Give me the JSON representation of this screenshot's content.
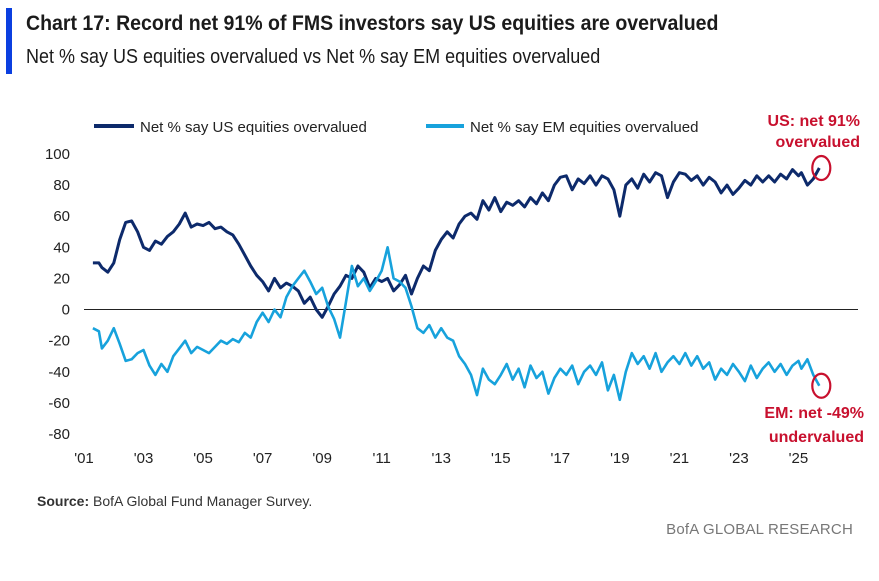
{
  "header": {
    "title": "Chart 17: Record net 91% of FMS investors say US equities are overvalued",
    "subtitle": "Net % say US equities overvalued vs Net % say EM equities overvalued"
  },
  "footer": {
    "source_label": "Source:",
    "source_text": " BofA Global Fund Manager Survey.",
    "brand": "BofA GLOBAL RESEARCH"
  },
  "annotations": {
    "us_line1": "US: net 91%",
    "us_line2": "overvalued",
    "em_line1": "EM: net -49%",
    "em_line2": "undervalued"
  },
  "colors": {
    "us": "#0d2a6b",
    "em": "#17a2dc",
    "annotation": "#c8102e",
    "accent_bar": "#0b3fe0"
  },
  "chart_data": {
    "type": "line",
    "ylim": [
      -80,
      100
    ],
    "yticks": [
      100,
      80,
      60,
      40,
      20,
      0,
      -20,
      -40,
      -60,
      -80
    ],
    "xlim": [
      2001,
      2027
    ],
    "xticks": [
      {
        "value": 2001,
        "label": "'01"
      },
      {
        "value": 2003,
        "label": "'03"
      },
      {
        "value": 2005,
        "label": "'05"
      },
      {
        "value": 2007,
        "label": "'07"
      },
      {
        "value": 2009,
        "label": "'09"
      },
      {
        "value": 2011,
        "label": "'11"
      },
      {
        "value": 2013,
        "label": "'13"
      },
      {
        "value": 2015,
        "label": "'15"
      },
      {
        "value": 2017,
        "label": "'17"
      },
      {
        "value": 2019,
        "label": "'19"
      },
      {
        "value": 2021,
        "label": "'21"
      },
      {
        "value": 2023,
        "label": "'23"
      },
      {
        "value": 2025,
        "label": "'25"
      }
    ],
    "legend_position": "top",
    "series": [
      {
        "name": "Net % say US equities overvalued",
        "color": "#0d2a6b",
        "points": [
          [
            2001.3,
            30
          ],
          [
            2001.5,
            30
          ],
          [
            2001.6,
            27
          ],
          [
            2001.8,
            24
          ],
          [
            2002.0,
            30
          ],
          [
            2002.2,
            45
          ],
          [
            2002.4,
            56
          ],
          [
            2002.6,
            57
          ],
          [
            2002.8,
            50
          ],
          [
            2003.0,
            40
          ],
          [
            2003.2,
            38
          ],
          [
            2003.4,
            44
          ],
          [
            2003.6,
            42
          ],
          [
            2003.8,
            47
          ],
          [
            2004.0,
            50
          ],
          [
            2004.2,
            55
          ],
          [
            2004.4,
            62
          ],
          [
            2004.6,
            53
          ],
          [
            2004.8,
            55
          ],
          [
            2005.0,
            54
          ],
          [
            2005.2,
            56
          ],
          [
            2005.4,
            52
          ],
          [
            2005.6,
            53
          ],
          [
            2005.8,
            50
          ],
          [
            2006.0,
            48
          ],
          [
            2006.2,
            42
          ],
          [
            2006.4,
            35
          ],
          [
            2006.6,
            28
          ],
          [
            2006.8,
            22
          ],
          [
            2007.0,
            18
          ],
          [
            2007.2,
            12
          ],
          [
            2007.4,
            20
          ],
          [
            2007.6,
            14
          ],
          [
            2007.8,
            17
          ],
          [
            2008.0,
            15
          ],
          [
            2008.2,
            12
          ],
          [
            2008.4,
            4
          ],
          [
            2008.6,
            8
          ],
          [
            2008.8,
            0
          ],
          [
            2009.0,
            -5
          ],
          [
            2009.2,
            2
          ],
          [
            2009.4,
            10
          ],
          [
            2009.6,
            15
          ],
          [
            2009.8,
            22
          ],
          [
            2010.0,
            20
          ],
          [
            2010.2,
            28
          ],
          [
            2010.4,
            24
          ],
          [
            2010.6,
            14
          ],
          [
            2010.8,
            20
          ],
          [
            2011.0,
            18
          ],
          [
            2011.2,
            20
          ],
          [
            2011.4,
            12
          ],
          [
            2011.6,
            16
          ],
          [
            2011.8,
            22
          ],
          [
            2012.0,
            10
          ],
          [
            2012.2,
            20
          ],
          [
            2012.4,
            28
          ],
          [
            2012.6,
            25
          ],
          [
            2012.8,
            38
          ],
          [
            2013.0,
            45
          ],
          [
            2013.2,
            50
          ],
          [
            2013.4,
            46
          ],
          [
            2013.6,
            55
          ],
          [
            2013.8,
            60
          ],
          [
            2014.0,
            62
          ],
          [
            2014.2,
            58
          ],
          [
            2014.4,
            70
          ],
          [
            2014.6,
            64
          ],
          [
            2014.8,
            72
          ],
          [
            2015.0,
            63
          ],
          [
            2015.2,
            69
          ],
          [
            2015.4,
            67
          ],
          [
            2015.6,
            70
          ],
          [
            2015.8,
            66
          ],
          [
            2016.0,
            72
          ],
          [
            2016.2,
            68
          ],
          [
            2016.4,
            75
          ],
          [
            2016.6,
            70
          ],
          [
            2016.8,
            80
          ],
          [
            2017.0,
            85
          ],
          [
            2017.2,
            86
          ],
          [
            2017.4,
            77
          ],
          [
            2017.6,
            84
          ],
          [
            2017.8,
            81
          ],
          [
            2018.0,
            86
          ],
          [
            2018.2,
            80
          ],
          [
            2018.4,
            86
          ],
          [
            2018.6,
            84
          ],
          [
            2018.8,
            77
          ],
          [
            2019.0,
            60
          ],
          [
            2019.2,
            80
          ],
          [
            2019.4,
            84
          ],
          [
            2019.6,
            78
          ],
          [
            2019.8,
            87
          ],
          [
            2020.0,
            82
          ],
          [
            2020.2,
            88
          ],
          [
            2020.4,
            86
          ],
          [
            2020.6,
            72
          ],
          [
            2020.8,
            82
          ],
          [
            2021.0,
            88
          ],
          [
            2021.2,
            87
          ],
          [
            2021.4,
            83
          ],
          [
            2021.6,
            86
          ],
          [
            2021.8,
            80
          ],
          [
            2022.0,
            85
          ],
          [
            2022.2,
            82
          ],
          [
            2022.4,
            75
          ],
          [
            2022.6,
            80
          ],
          [
            2022.8,
            74
          ],
          [
            2023.0,
            78
          ],
          [
            2023.2,
            83
          ],
          [
            2023.4,
            80
          ],
          [
            2023.6,
            86
          ],
          [
            2023.8,
            82
          ],
          [
            2024.0,
            86
          ],
          [
            2024.2,
            82
          ],
          [
            2024.4,
            87
          ],
          [
            2024.6,
            84
          ],
          [
            2024.8,
            90
          ],
          [
            2025.0,
            86
          ],
          [
            2025.1,
            88
          ],
          [
            2025.3,
            80
          ],
          [
            2025.5,
            84
          ],
          [
            2025.7,
            91
          ]
        ]
      },
      {
        "name": "Net % say EM equities overvalued",
        "color": "#17a2dc",
        "points": [
          [
            2001.3,
            -12
          ],
          [
            2001.5,
            -14
          ],
          [
            2001.6,
            -25
          ],
          [
            2001.8,
            -20
          ],
          [
            2002.0,
            -12
          ],
          [
            2002.2,
            -22
          ],
          [
            2002.4,
            -33
          ],
          [
            2002.6,
            -32
          ],
          [
            2002.8,
            -28
          ],
          [
            2003.0,
            -26
          ],
          [
            2003.2,
            -36
          ],
          [
            2003.4,
            -42
          ],
          [
            2003.6,
            -35
          ],
          [
            2003.8,
            -40
          ],
          [
            2004.0,
            -30
          ],
          [
            2004.2,
            -25
          ],
          [
            2004.4,
            -20
          ],
          [
            2004.6,
            -28
          ],
          [
            2004.8,
            -24
          ],
          [
            2005.0,
            -26
          ],
          [
            2005.2,
            -28
          ],
          [
            2005.4,
            -24
          ],
          [
            2005.6,
            -20
          ],
          [
            2005.8,
            -22
          ],
          [
            2006.0,
            -19
          ],
          [
            2006.2,
            -21
          ],
          [
            2006.4,
            -15
          ],
          [
            2006.6,
            -18
          ],
          [
            2006.8,
            -8
          ],
          [
            2007.0,
            -2
          ],
          [
            2007.2,
            -8
          ],
          [
            2007.4,
            0
          ],
          [
            2007.6,
            -5
          ],
          [
            2007.8,
            8
          ],
          [
            2008.0,
            15
          ],
          [
            2008.2,
            20
          ],
          [
            2008.4,
            25
          ],
          [
            2008.6,
            18
          ],
          [
            2008.8,
            10
          ],
          [
            2009.0,
            14
          ],
          [
            2009.2,
            2
          ],
          [
            2009.4,
            -6
          ],
          [
            2009.6,
            -18
          ],
          [
            2009.8,
            5
          ],
          [
            2010.0,
            28
          ],
          [
            2010.2,
            15
          ],
          [
            2010.4,
            20
          ],
          [
            2010.6,
            12
          ],
          [
            2010.8,
            18
          ],
          [
            2011.0,
            25
          ],
          [
            2011.2,
            40
          ],
          [
            2011.4,
            20
          ],
          [
            2011.6,
            18
          ],
          [
            2011.8,
            14
          ],
          [
            2012.0,
            2
          ],
          [
            2012.2,
            -12
          ],
          [
            2012.4,
            -15
          ],
          [
            2012.6,
            -10
          ],
          [
            2012.8,
            -18
          ],
          [
            2013.0,
            -12
          ],
          [
            2013.2,
            -18
          ],
          [
            2013.4,
            -20
          ],
          [
            2013.6,
            -30
          ],
          [
            2013.8,
            -35
          ],
          [
            2014.0,
            -42
          ],
          [
            2014.2,
            -55
          ],
          [
            2014.4,
            -38
          ],
          [
            2014.6,
            -45
          ],
          [
            2014.8,
            -48
          ],
          [
            2015.0,
            -42
          ],
          [
            2015.2,
            -35
          ],
          [
            2015.4,
            -45
          ],
          [
            2015.6,
            -38
          ],
          [
            2015.8,
            -50
          ],
          [
            2016.0,
            -36
          ],
          [
            2016.2,
            -44
          ],
          [
            2016.4,
            -40
          ],
          [
            2016.6,
            -54
          ],
          [
            2016.8,
            -44
          ],
          [
            2017.0,
            -38
          ],
          [
            2017.2,
            -42
          ],
          [
            2017.4,
            -36
          ],
          [
            2017.6,
            -48
          ],
          [
            2017.8,
            -40
          ],
          [
            2018.0,
            -36
          ],
          [
            2018.2,
            -42
          ],
          [
            2018.4,
            -34
          ],
          [
            2018.6,
            -52
          ],
          [
            2018.8,
            -42
          ],
          [
            2019.0,
            -58
          ],
          [
            2019.2,
            -40
          ],
          [
            2019.4,
            -28
          ],
          [
            2019.6,
            -35
          ],
          [
            2019.8,
            -30
          ],
          [
            2020.0,
            -38
          ],
          [
            2020.2,
            -28
          ],
          [
            2020.4,
            -40
          ],
          [
            2020.6,
            -34
          ],
          [
            2020.8,
            -30
          ],
          [
            2021.0,
            -35
          ],
          [
            2021.2,
            -28
          ],
          [
            2021.4,
            -36
          ],
          [
            2021.6,
            -30
          ],
          [
            2021.8,
            -38
          ],
          [
            2022.0,
            -34
          ],
          [
            2022.2,
            -45
          ],
          [
            2022.4,
            -38
          ],
          [
            2022.6,
            -42
          ],
          [
            2022.8,
            -35
          ],
          [
            2023.0,
            -40
          ],
          [
            2023.2,
            -46
          ],
          [
            2023.4,
            -36
          ],
          [
            2023.6,
            -44
          ],
          [
            2023.8,
            -38
          ],
          [
            2024.0,
            -34
          ],
          [
            2024.2,
            -40
          ],
          [
            2024.4,
            -35
          ],
          [
            2024.6,
            -42
          ],
          [
            2024.8,
            -36
          ],
          [
            2025.0,
            -33
          ],
          [
            2025.1,
            -38
          ],
          [
            2025.3,
            -32
          ],
          [
            2025.5,
            -42
          ],
          [
            2025.7,
            -49
          ]
        ]
      }
    ]
  }
}
